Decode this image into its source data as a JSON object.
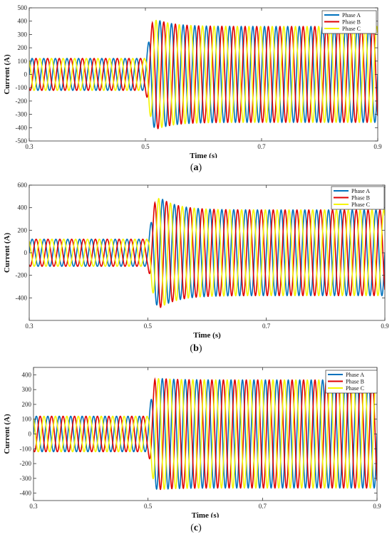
{
  "chart_data": [
    {
      "panel": "a",
      "type": "line",
      "caption_letter": "a",
      "xlabel": "Time (s)",
      "ylabel": "Current (A)",
      "xlim": [
        0.3,
        0.9
      ],
      "ylim": [
        -500,
        500
      ],
      "x_ticks": [
        "0.3",
        "0.5",
        "0.7",
        "0.9"
      ],
      "y_ticks": [
        "500",
        "400",
        "300",
        "200",
        "100",
        "0",
        "-100",
        "-200",
        "-300",
        "-400",
        "-500"
      ],
      "legend": "top-right",
      "grid": false,
      "frequency_hz": 50,
      "step_time_s": 0.5,
      "amplitude_before_A": 120,
      "amplitude_after_A": 360,
      "transient_peak_A": 410,
      "series": [
        {
          "name": "Phase A",
          "color": "#0072BD",
          "phase_deg": 0
        },
        {
          "name": "Phase B",
          "color": "#E00000",
          "phase_deg": -120
        },
        {
          "name": "Phase C",
          "color": "#F5F500",
          "phase_deg": 120
        }
      ]
    },
    {
      "panel": "b",
      "type": "line",
      "caption_letter": "b",
      "xlabel": "Time (s)",
      "ylabel": "Current (A)",
      "xlim": [
        0.3,
        0.9
      ],
      "ylim": [
        -600,
        600
      ],
      "x_ticks": [
        "0.3",
        "0.5",
        "0.7",
        "0.9"
      ],
      "y_ticks": [
        "600",
        "400",
        "200",
        "0",
        "-200",
        "-400"
      ],
      "legend": "top-right",
      "grid": false,
      "frequency_hz": 50,
      "step_time_s": 0.5,
      "amplitude_before_A": 120,
      "amplitude_after_A": 380,
      "transient_peak_A": 490,
      "series": [
        {
          "name": "Phase A",
          "color": "#0072BD",
          "phase_deg": 0
        },
        {
          "name": "Phase B",
          "color": "#E00000",
          "phase_deg": -120
        },
        {
          "name": "Phase C",
          "color": "#F5F500",
          "phase_deg": 120
        }
      ]
    },
    {
      "panel": "c",
      "type": "line",
      "caption_letter": "c",
      "xlabel": "Time (s)",
      "ylabel": "Current (A)",
      "xlim": [
        0.3,
        0.9
      ],
      "ylim": [
        -450,
        450
      ],
      "x_ticks": [
        "0.3",
        "0.5",
        "0.7",
        "0.9"
      ],
      "y_ticks": [
        "400",
        "300",
        "200",
        "100",
        "0",
        "-100",
        "-200",
        "-300",
        "-400"
      ],
      "legend": "top-right",
      "grid": false,
      "frequency_hz": 50,
      "step_time_s": 0.5,
      "amplitude_before_A": 120,
      "amplitude_after_A": 365,
      "transient_peak_A": 375,
      "series": [
        {
          "name": "Phase A",
          "color": "#0072BD",
          "phase_deg": 0
        },
        {
          "name": "Phase B",
          "color": "#E00000",
          "phase_deg": -120
        },
        {
          "name": "Phase C",
          "color": "#F5F500",
          "phase_deg": 120
        }
      ]
    }
  ]
}
